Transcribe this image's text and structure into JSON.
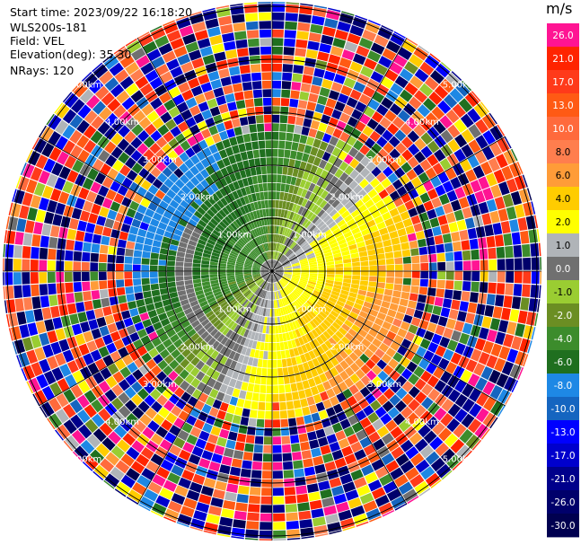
{
  "info": {
    "start_time": "Start time: 2023/09/22 16:18:20",
    "station": "WLS200s-181",
    "field": "Field: VEL",
    "elevation": "Elevation(deg): 35.30",
    "nrays": "NRays: 120"
  },
  "chart_data": {
    "type": "polar radial velocity (PPI)",
    "field": "VEL",
    "station": "WLS200s-181",
    "start_time": "2023/09/22 16:18:20",
    "elevation_deg": 35.3,
    "n_rays": 120,
    "range_rings_km": [
      1.0,
      2.0,
      3.0,
      4.0,
      5.0
    ],
    "ring_label_text": "km",
    "colorbar": {
      "unit": "m/s",
      "levels": [
        26.0,
        21.0,
        17.0,
        13.0,
        10.0,
        8.0,
        6.0,
        4.0,
        2.0,
        1.0,
        0.0,
        -1.0,
        -2.0,
        -4.0,
        -6.0,
        -8.0,
        -10.0,
        -13.0,
        -17.0,
        -21.0,
        -26.0,
        -30.0
      ],
      "labels": [
        "26.0",
        "21.0",
        "17.0",
        "13.0",
        "10.0",
        "8.0",
        "6.0",
        "4.0",
        "2.0",
        "1.0",
        "0.0",
        "-1.0",
        "-2.0",
        "-4.0",
        "-6.0",
        "-8.0",
        "-10.0",
        "-13.0",
        "-17.0",
        "-21.0",
        "-26.0",
        "-30.0"
      ],
      "colors": [
        "#ff1493",
        "#ff2400",
        "#ff3a1a",
        "#ff5a14",
        "#ff6a3c",
        "#ff7e4e",
        "#ff9c38",
        "#ffcc00",
        "#ffff00",
        "#b0b4b8",
        "#707070",
        "#9acd32",
        "#6b8e23",
        "#3c8c2c",
        "#1f6f1f",
        "#1e88e5",
        "#1565c0",
        "#0000ff",
        "#0000cd",
        "#00008b",
        "#00006b",
        "#000050"
      ]
    },
    "pattern": {
      "inner_positive_region": "yellow / orange, east and south-east of center",
      "inner_negative_region": "green, west and north-west of center",
      "zero_band": "gray arc separating the two regions",
      "outer_region": "noisy multicolor gates beyond ~3 km"
    }
  }
}
